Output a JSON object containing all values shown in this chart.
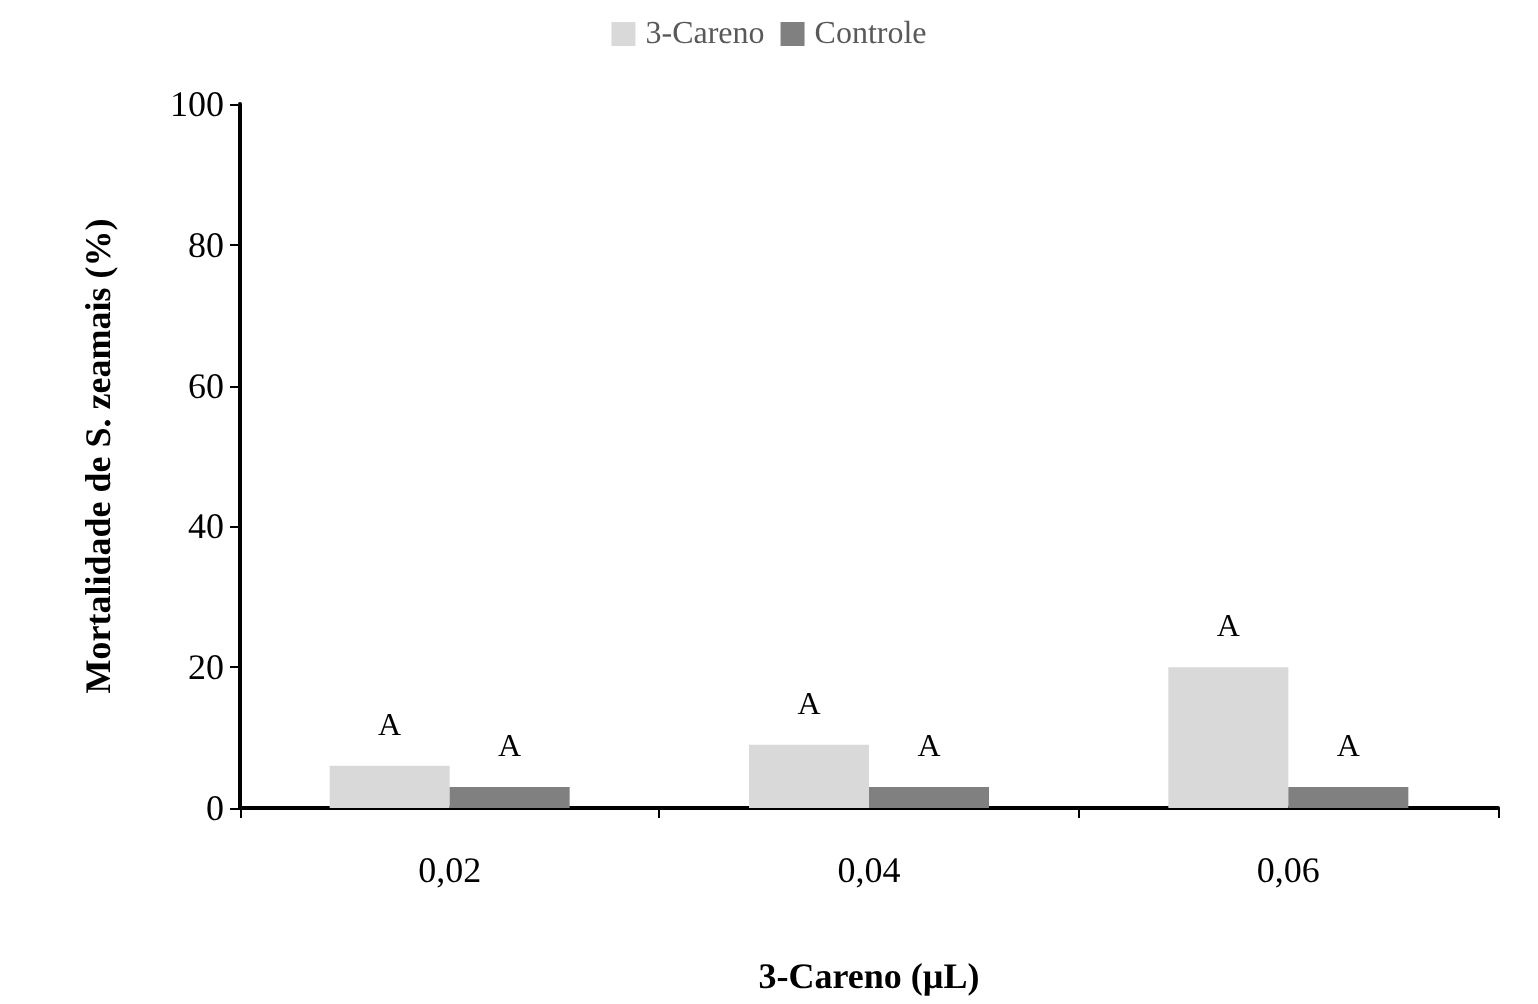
{
  "chart_data": {
    "type": "bar",
    "categories": [
      "0,02",
      "0,04",
      "0,06"
    ],
    "series": [
      {
        "name": "3-Careno",
        "color": "#d9d9d9",
        "values": [
          6,
          9,
          20
        ]
      },
      {
        "name": "Controle",
        "color": "#808080",
        "values": [
          3,
          3,
          3
        ]
      }
    ],
    "xlabel": "3-Careno (µL)",
    "ylabel": "Mortalidade de S. zeamais (%)",
    "ylim": [
      0,
      100
    ],
    "yticks": [
      0,
      20,
      40,
      60,
      80,
      100
    ],
    "grid": false,
    "legend": "top",
    "annotations": [
      "A",
      "A",
      "A",
      "A",
      "A",
      "A"
    ]
  }
}
